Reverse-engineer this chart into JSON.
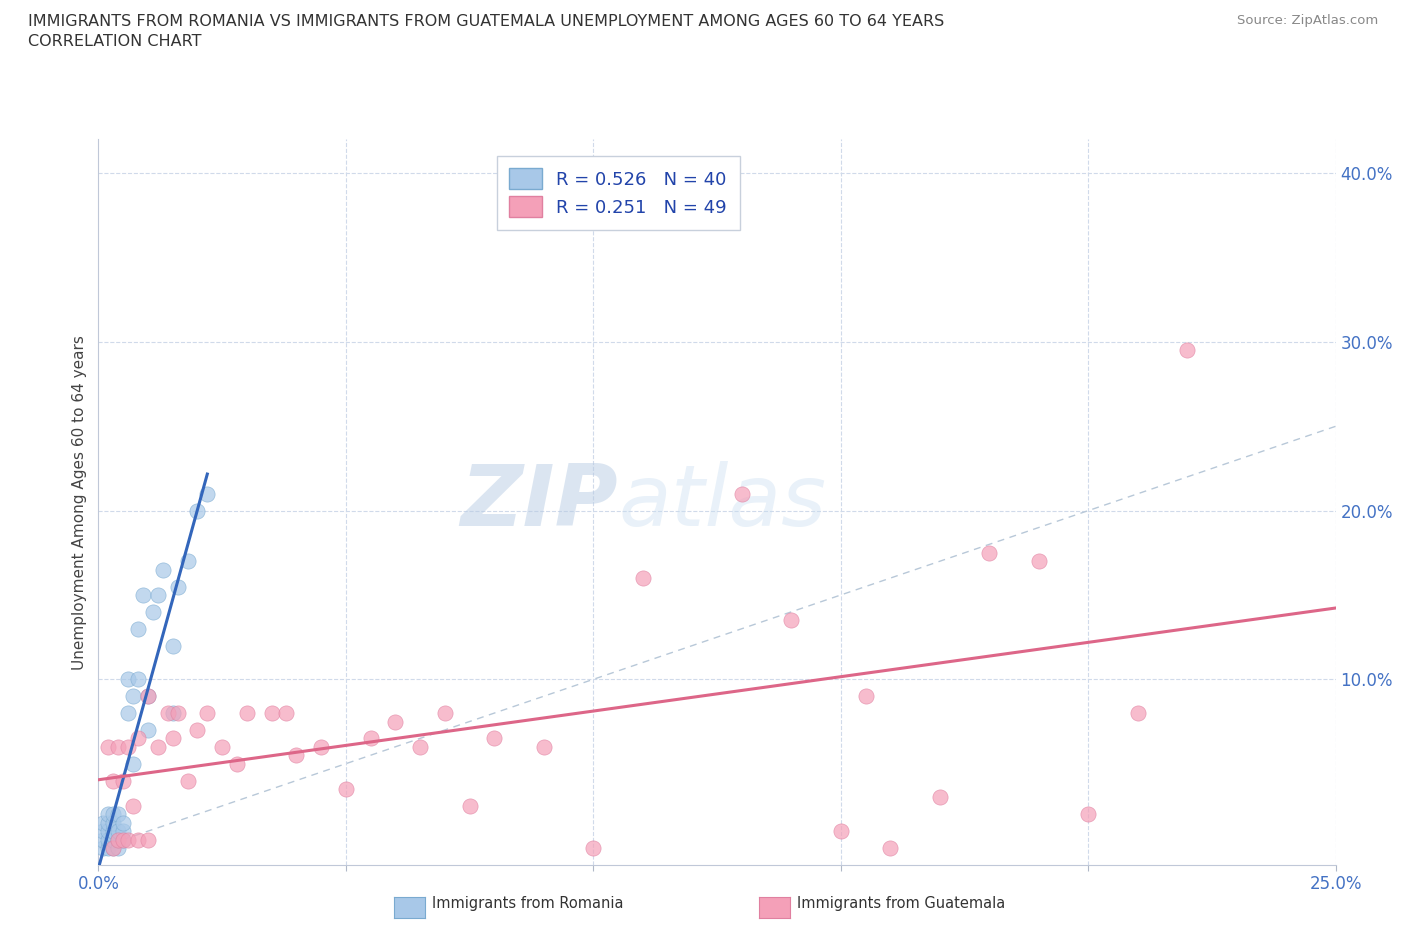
{
  "title_line1": "IMMIGRANTS FROM ROMANIA VS IMMIGRANTS FROM GUATEMALA UNEMPLOYMENT AMONG AGES 60 TO 64 YEARS",
  "title_line2": "CORRELATION CHART",
  "source_text": "Source: ZipAtlas.com",
  "ylabel": "Unemployment Among Ages 60 to 64 years",
  "xlim": [
    0.0,
    0.25
  ],
  "ylim": [
    -0.01,
    0.42
  ],
  "romania_color": "#a8c8e8",
  "guatemala_color": "#f4a0b8",
  "romania_edge_color": "#7aaad0",
  "guatemala_edge_color": "#e080a0",
  "romania_line_color": "#3366bb",
  "guatemala_line_color": "#dd6688",
  "diagonal_color": "#b8c8d8",
  "romania_R": 0.526,
  "romania_N": 40,
  "guatemala_R": 0.251,
  "guatemala_N": 49,
  "romania_x": [
    0.001,
    0.001,
    0.001,
    0.001,
    0.002,
    0.002,
    0.002,
    0.002,
    0.002,
    0.003,
    0.003,
    0.003,
    0.003,
    0.003,
    0.003,
    0.004,
    0.004,
    0.004,
    0.004,
    0.005,
    0.005,
    0.005,
    0.006,
    0.006,
    0.007,
    0.007,
    0.008,
    0.008,
    0.009,
    0.01,
    0.01,
    0.011,
    0.012,
    0.013,
    0.015,
    0.015,
    0.016,
    0.018,
    0.02,
    0.022
  ],
  "romania_y": [
    0.0,
    0.005,
    0.01,
    0.015,
    0.0,
    0.005,
    0.01,
    0.015,
    0.02,
    0.0,
    0.005,
    0.008,
    0.01,
    0.015,
    0.02,
    0.0,
    0.005,
    0.01,
    0.02,
    0.005,
    0.01,
    0.015,
    0.08,
    0.1,
    0.05,
    0.09,
    0.1,
    0.13,
    0.15,
    0.07,
    0.09,
    0.14,
    0.15,
    0.165,
    0.08,
    0.12,
    0.155,
    0.17,
    0.2,
    0.21
  ],
  "guatemala_x": [
    0.002,
    0.003,
    0.003,
    0.004,
    0.004,
    0.005,
    0.005,
    0.006,
    0.006,
    0.007,
    0.008,
    0.008,
    0.01,
    0.01,
    0.012,
    0.014,
    0.015,
    0.016,
    0.018,
    0.02,
    0.022,
    0.025,
    0.028,
    0.03,
    0.035,
    0.038,
    0.04,
    0.045,
    0.05,
    0.055,
    0.06,
    0.065,
    0.07,
    0.075,
    0.08,
    0.09,
    0.1,
    0.11,
    0.13,
    0.14,
    0.15,
    0.155,
    0.16,
    0.17,
    0.18,
    0.19,
    0.2,
    0.21,
    0.22
  ],
  "guatemala_y": [
    0.06,
    0.0,
    0.04,
    0.005,
    0.06,
    0.005,
    0.04,
    0.005,
    0.06,
    0.025,
    0.005,
    0.065,
    0.005,
    0.09,
    0.06,
    0.08,
    0.065,
    0.08,
    0.04,
    0.07,
    0.08,
    0.06,
    0.05,
    0.08,
    0.08,
    0.08,
    0.055,
    0.06,
    0.035,
    0.065,
    0.075,
    0.06,
    0.08,
    0.025,
    0.065,
    0.06,
    0.0,
    0.16,
    0.21,
    0.135,
    0.01,
    0.09,
    0.0,
    0.03,
    0.175,
    0.17,
    0.02,
    0.08,
    0.295
  ],
  "background_color": "#ffffff",
  "grid_color": "#d0daea",
  "title_color": "#333333",
  "axis_label_color": "#4472c4",
  "legend_text_color": "#2244aa"
}
